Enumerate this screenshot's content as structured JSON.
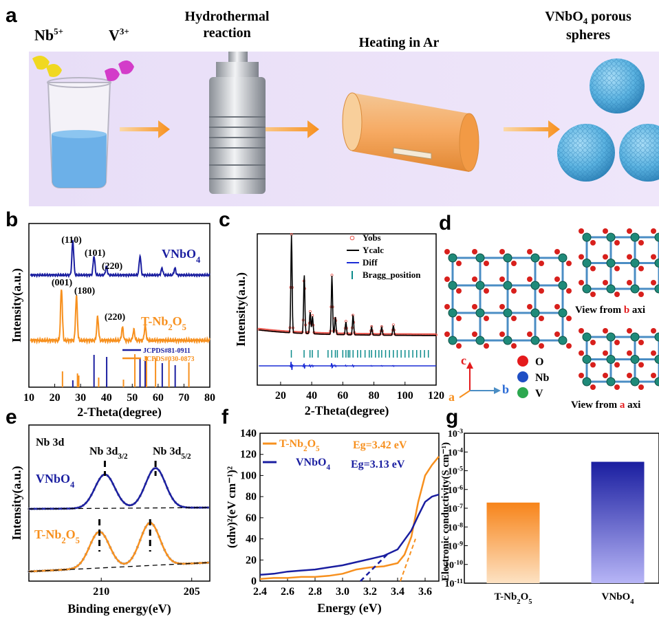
{
  "panel_labels": {
    "a": "a",
    "b": "b",
    "c": "c",
    "d": "d",
    "e": "e",
    "f": "f",
    "g": "g"
  },
  "panel_a": {
    "ion1": "Nb",
    "ion1_sup": "5+",
    "ion2": "V",
    "ion2_sup": "3+",
    "step1": "Hydrothermal",
    "step1b": "reaction",
    "step2": "Heating in Ar",
    "step3a": "VNbO",
    "step3a_sub": "4",
    "step3a_rest": " porous",
    "step3b": "spheres",
    "colors": {
      "background": "#ece4f7",
      "accent": "#f7a12a",
      "liquid": "#5da9e6",
      "sphere": "#5ab2e0"
    }
  },
  "panel_d": {
    "view_b_prefix": "View from ",
    "view_b_letter": "b",
    "view_b_suffix": " axi",
    "view_a_prefix": "View from ",
    "view_a_letter": "a",
    "view_a_suffix": " axi",
    "axis_c": "c",
    "axis_b": "b",
    "axis_a": "a",
    "legend": [
      {
        "label": "O",
        "color": "#e41a1c"
      },
      {
        "label": "Nb",
        "color": "#1f4fc4"
      },
      {
        "label": "V",
        "color": "#2ca84f"
      }
    ]
  },
  "chart_data": [
    {
      "panel": "b",
      "type": "line",
      "xlabel": "2-Theta(degree)",
      "ylabel": "Intensity(a.u.)",
      "xlim": [
        10,
        80
      ],
      "xticks": [
        "10",
        "20",
        "30",
        "40",
        "50",
        "60",
        "70",
        "80"
      ],
      "series": [
        {
          "name": "VNbO",
          "name_sub": "4",
          "color": "#1a1ea0",
          "peaks": [
            [
              27.0,
              1.0
            ],
            [
              35.2,
              0.55
            ],
            [
              40.0,
              0.25
            ],
            [
              53.0,
              0.55
            ],
            [
              61.5,
              0.2
            ],
            [
              66.5,
              0.2
            ]
          ]
        },
        {
          "name": "T-Nb",
          "name_sub": "2",
          "name_rest": "O",
          "name_sub2": "5",
          "color": "#f7901e",
          "peaks": [
            [
              22.6,
              1.0
            ],
            [
              28.4,
              0.85
            ],
            [
              36.6,
              0.45
            ],
            [
              46.2,
              0.25
            ],
            [
              50.6,
              0.2
            ],
            [
              55.0,
              0.28
            ]
          ]
        }
      ],
      "annotations": [
        "(110)",
        "(101)",
        "(220)",
        "(001)",
        "(180)",
        "(220)"
      ],
      "reference": [
        {
          "name": "JCPDS#81-0911",
          "color": "#1a1ea0",
          "lines": [
            27.0,
            35.2,
            40.1,
            53.0,
            55.0,
            61.6,
            66.6
          ]
        },
        {
          "name": "JCPDS#030-0873",
          "color": "#f7901e",
          "lines": [
            22.6,
            28.4,
            28.9,
            36.6,
            46.2,
            50.6,
            55.1,
            58.6,
            63.8,
            71.5
          ]
        }
      ]
    },
    {
      "panel": "c",
      "type": "line",
      "xlabel": "2-Theta(degree)",
      "ylabel": "Intensity(a.u.)",
      "xlim": [
        5,
        120
      ],
      "xticks": [
        "20",
        "40",
        "60",
        "80",
        "100",
        "120"
      ],
      "legend": [
        "Yobs",
        "Ycalc",
        "Diff",
        "Bragg_position"
      ],
      "peaks": [
        [
          27.0,
          1.0
        ],
        [
          35.2,
          0.6
        ],
        [
          39.0,
          0.22
        ],
        [
          40.5,
          0.18
        ],
        [
          53.0,
          0.6
        ],
        [
          55.2,
          0.18
        ],
        [
          62.0,
          0.13
        ],
        [
          66.6,
          0.2
        ],
        [
          78.5,
          0.08
        ],
        [
          85.0,
          0.08
        ],
        [
          92.5,
          0.1
        ]
      ]
    },
    {
      "panel": "e",
      "type": "line",
      "title": "Nb 3d",
      "xlabel": "Binding energy(eV)",
      "ylabel": "Intensity(a.u.)",
      "xlim": [
        214,
        204
      ],
      "xticks": [
        "210",
        "205"
      ],
      "peak_labels": [
        "Nb 3d",
        "3/2",
        "Nb 3d",
        "5/2"
      ],
      "series": [
        {
          "name": "VNbO",
          "name_sub": "4",
          "color": "#1a1ea0",
          "peaks": [
            209.8,
            207.0
          ]
        },
        {
          "name": "T-Nb",
          "name_sub": "2",
          "name_rest": "O",
          "name_sub2": "5",
          "color": "#f7901e",
          "peaks": [
            210.1,
            207.3
          ]
        }
      ]
    },
    {
      "panel": "f",
      "type": "line",
      "xlabel": "Energy (eV)",
      "ylabel": "(αhν)²(eV cm⁻¹)²",
      "xlim": [
        2.4,
        3.7
      ],
      "ylim": [
        0,
        140
      ],
      "xticks": [
        "2.4",
        "2.6",
        "2.8",
        "3.0",
        "3.2",
        "3.4",
        "3.6"
      ],
      "yticks": [
        "0",
        "20",
        "40",
        "60",
        "80",
        "100",
        "120",
        "140"
      ],
      "series": [
        {
          "name": "T-Nb",
          "name_sub": "2",
          "name_rest": "O",
          "name_sub2": "5",
          "color": "#f7901e",
          "eg": "Eg=3.42 eV",
          "x": [
            2.4,
            2.5,
            2.6,
            2.7,
            2.8,
            2.9,
            3.0,
            3.1,
            3.2,
            3.3,
            3.4,
            3.45,
            3.5,
            3.55,
            3.6,
            3.65,
            3.7
          ],
          "y": [
            2,
            3,
            3,
            4,
            4,
            5,
            7,
            11,
            13,
            14,
            17,
            25,
            42,
            75,
            100,
            110,
            118
          ]
        },
        {
          "name": "VNbO",
          "name_sub": "4",
          "color": "#1a1ea0",
          "eg": "Eg=3.13 eV",
          "x": [
            2.4,
            2.5,
            2.6,
            2.7,
            2.8,
            2.9,
            3.0,
            3.1,
            3.2,
            3.3,
            3.4,
            3.5,
            3.55,
            3.6,
            3.65,
            3.7
          ],
          "y": [
            6,
            7,
            9,
            10,
            11,
            13,
            15,
            18,
            21,
            24,
            30,
            48,
            62,
            75,
            80,
            82
          ]
        }
      ]
    },
    {
      "panel": "g",
      "type": "bar",
      "ylabel": "Electronic conductivity(S cm⁻¹)",
      "categories": [
        "T-Nb2O5",
        "VNbO4"
      ],
      "values": [
        2e-07,
        3e-05
      ],
      "yscale": "log",
      "ylim": [
        1e-11,
        0.001
      ],
      "yticks": [
        "10",
        "10",
        "10",
        "10",
        "10",
        "10",
        "10",
        "10",
        "10"
      ],
      "ytick_exps": [
        "-11",
        "-10",
        "-9",
        "-8",
        "-7",
        "-6",
        "-5",
        "-4",
        "-3"
      ],
      "xtick_parts": [
        [
          "T-Nb",
          "2",
          "O",
          "5"
        ],
        [
          "VNbO",
          "4",
          "",
          ""
        ]
      ],
      "colors": [
        "#f7901e",
        "#1a1ea0"
      ]
    }
  ]
}
